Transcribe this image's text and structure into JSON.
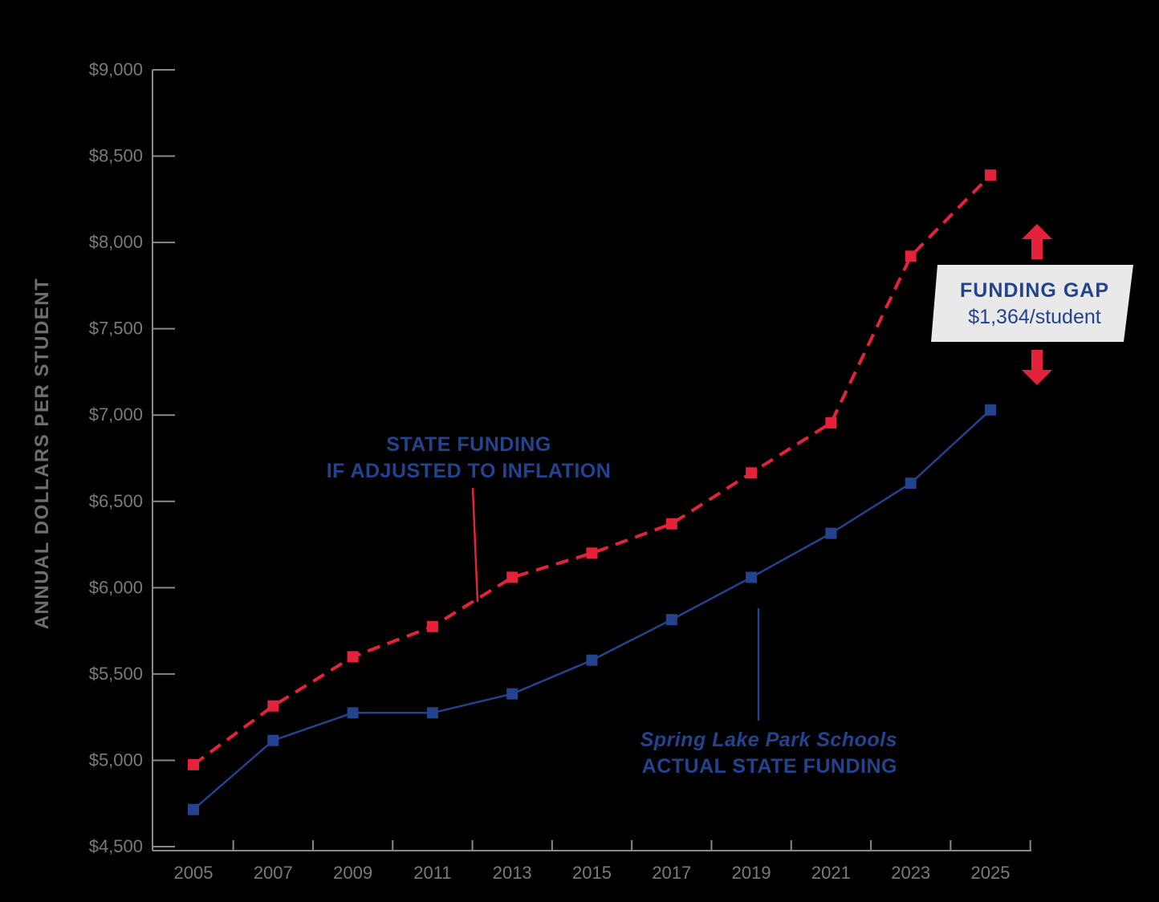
{
  "chart_data": {
    "type": "line",
    "ylabel": "ANNUAL DOLLARS PER STUDENT",
    "xlabel": "",
    "ylim": [
      4500,
      9000
    ],
    "y_ticks": [
      4500,
      5000,
      5500,
      6000,
      6500,
      7000,
      7500,
      8000,
      8500,
      9000
    ],
    "y_tick_labels": [
      "$4,500",
      "$5,000",
      "$5,500",
      "$6,000",
      "$6,500",
      "$7,000",
      "$7,500",
      "$8,000",
      "$8,500",
      "$9,000"
    ],
    "x": [
      2005,
      2007,
      2009,
      2011,
      2013,
      2015,
      2017,
      2019,
      2021,
      2023,
      2025
    ],
    "x_tick_labels": [
      "2005",
      "2007",
      "2009",
      "2011",
      "2013",
      "2015",
      "2017",
      "2019",
      "2021",
      "2023",
      "2025"
    ],
    "grid": false,
    "series": [
      {
        "name": "STATE FUNDING IF ADJUSTED TO INFLATION",
        "color": "#e4223a",
        "style": "dashed",
        "values": [
          4975,
          5315,
          5600,
          5775,
          6060,
          6200,
          6370,
          6665,
          6955,
          7920,
          8390
        ]
      },
      {
        "name": "Spring Lake Park Schools ACTUAL STATE FUNDING",
        "color": "#24438e",
        "style": "solid",
        "values": [
          4715,
          5115,
          5275,
          5275,
          5385,
          5580,
          5815,
          6060,
          6315,
          6605,
          7030
        ]
      }
    ],
    "annotations": {
      "inflation_line1": "STATE FUNDING",
      "inflation_line2": "IF ADJUSTED TO INFLATION",
      "actual_line1": "Spring Lake Park Schools",
      "actual_line2": "ACTUAL STATE FUNDING",
      "gap_title": "FUNDING GAP",
      "gap_value": "$1,364/student"
    },
    "colors": {
      "arrow": "#e4223a",
      "gap_box": "#e9e9e9",
      "axis": "#8a8a8a"
    }
  }
}
